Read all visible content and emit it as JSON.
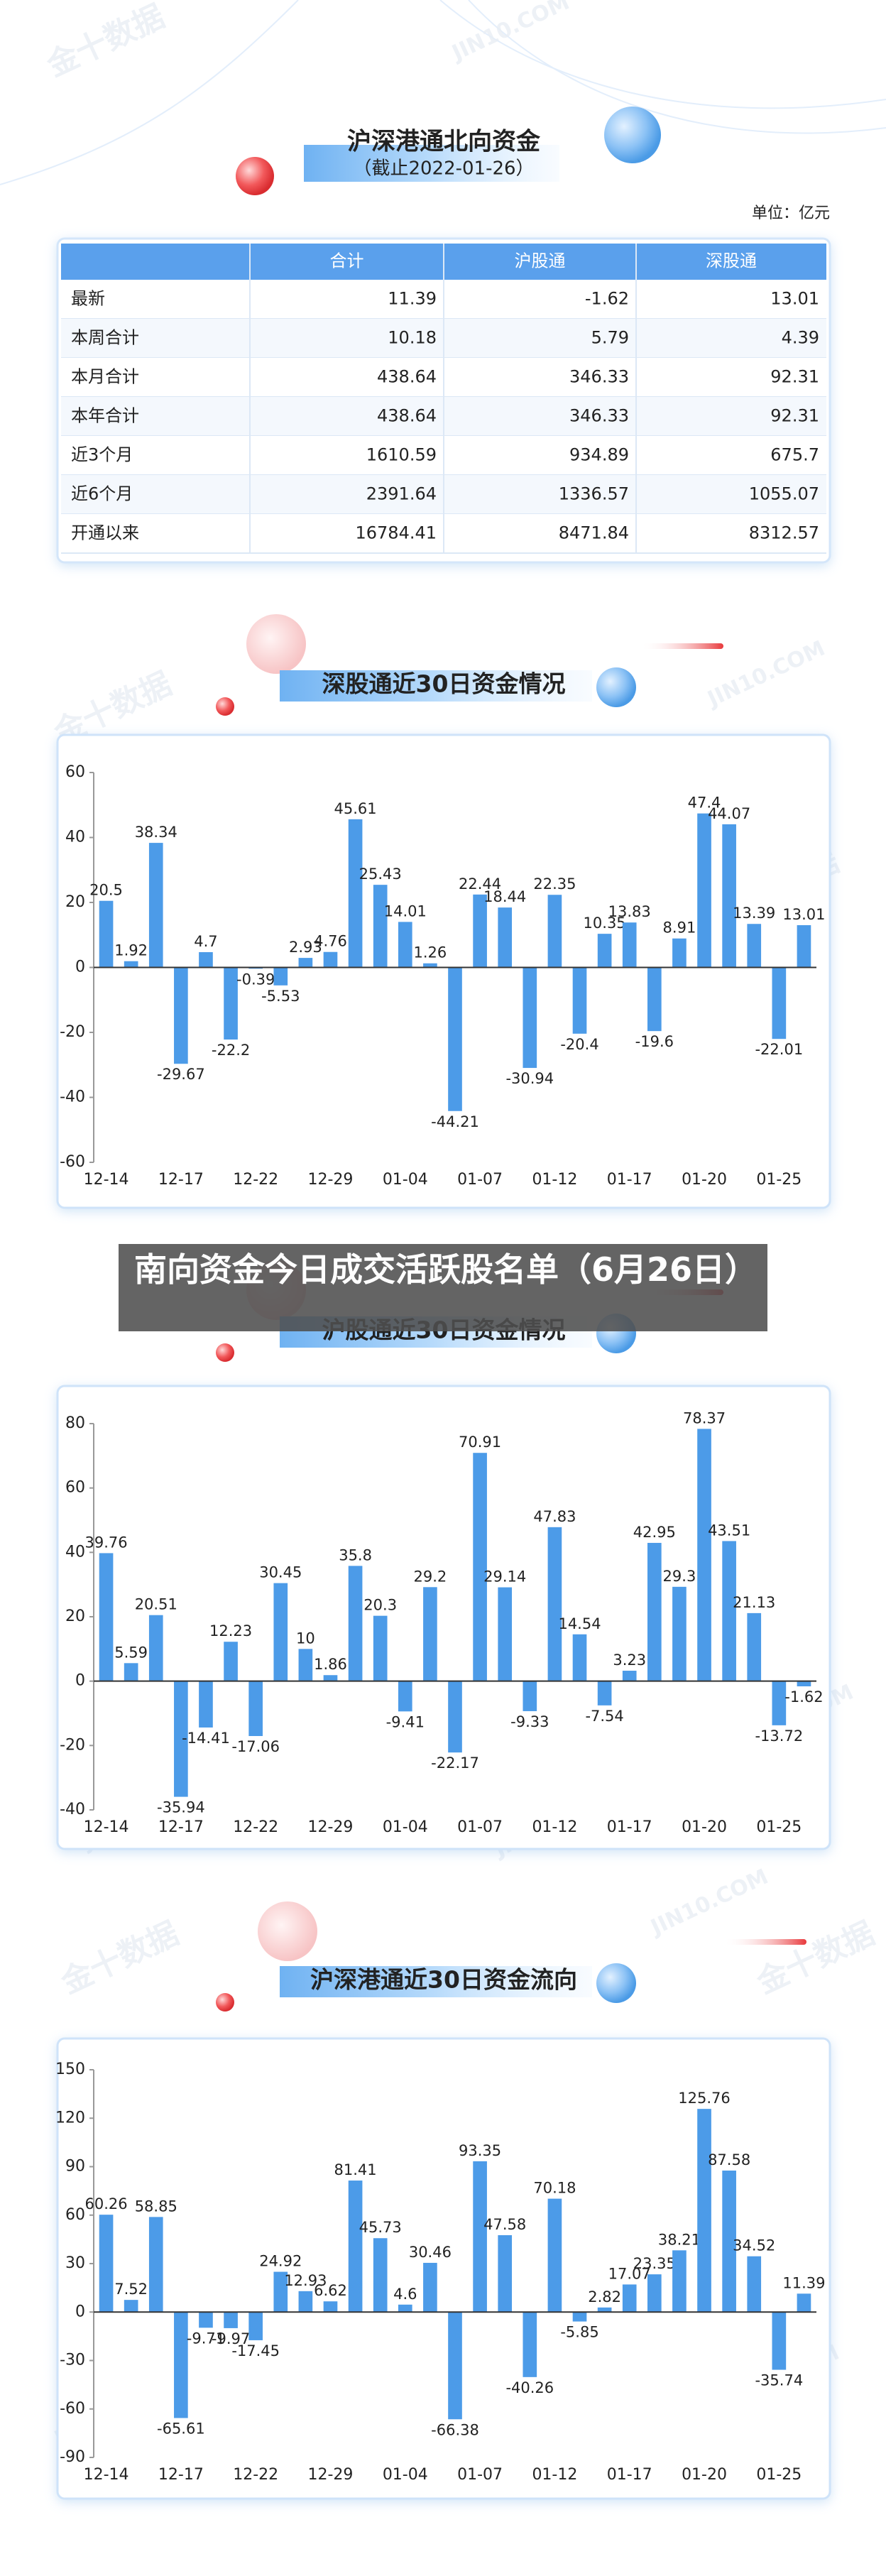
{
  "header": {
    "title": "沪深港通北向资金",
    "subtitle": "（截止2022-01-26）",
    "unit": "单位：亿元"
  },
  "table": {
    "columns": [
      "合计",
      "沪股通",
      "深股通"
    ],
    "rows": [
      [
        "最新",
        11.39,
        -1.62,
        13.01
      ],
      [
        "本周合计",
        10.18,
        5.79,
        4.39
      ],
      [
        "本月合计",
        438.64,
        346.33,
        92.31
      ],
      [
        "本年合计",
        438.64,
        346.33,
        92.31
      ],
      [
        "近3个月",
        1610.59,
        934.89,
        675.7
      ],
      [
        "近6个月",
        2391.64,
        1336.57,
        1055.07
      ],
      [
        "开通以来",
        16784.41,
        8471.84,
        8312.57
      ]
    ]
  },
  "banner": "南向资金今日成交活跃股名单（6月26日）",
  "watermark": [
    "金十数据",
    "JIN10.COM"
  ],
  "chart_data": [
    {
      "type": "bar",
      "title": "深股通近30日资金情况",
      "categories": [
        "12-14",
        null,
        null,
        "12-17",
        null,
        null,
        "12-22",
        null,
        null,
        "12-29",
        null,
        null,
        "01-04",
        null,
        null,
        "01-07",
        null,
        null,
        "01-12",
        null,
        null,
        "01-17",
        null,
        null,
        "01-20",
        null,
        null,
        "01-25",
        null
      ],
      "values": [
        20.5,
        1.92,
        38.34,
        -29.67,
        4.7,
        -22.2,
        -0.39,
        -5.53,
        2.93,
        4.76,
        45.61,
        25.43,
        14.01,
        1.26,
        -44.21,
        22.44,
        18.44,
        -30.94,
        22.35,
        -20.4,
        10.35,
        13.83,
        -19.6,
        8.91,
        47.4,
        44.07,
        13.39,
        -22.01,
        13.01
      ],
      "color": "#4c9be8",
      "ylim": [
        -60,
        60
      ],
      "yticks": [
        -60,
        -40,
        -20,
        0,
        20,
        40,
        60
      ]
    },
    {
      "type": "bar",
      "title": "沪股通近30日资金情况",
      "categories": [
        "12-14",
        null,
        null,
        "12-17",
        null,
        null,
        "12-22",
        null,
        null,
        "12-29",
        null,
        null,
        "01-04",
        null,
        null,
        "01-07",
        null,
        null,
        "01-12",
        null,
        null,
        "01-17",
        null,
        null,
        "01-20",
        null,
        null,
        "01-25",
        null
      ],
      "values": [
        39.76,
        5.59,
        20.51,
        -35.94,
        -14.41,
        12.23,
        -17.06,
        30.45,
        10,
        1.86,
        35.8,
        20.3,
        -9.41,
        29.2,
        -22.17,
        70.91,
        29.14,
        -9.33,
        47.83,
        14.54,
        -7.54,
        3.23,
        42.95,
        29.3,
        78.37,
        43.51,
        21.13,
        -13.72,
        -1.62
      ],
      "color": "#4c9be8",
      "ylim": [
        -40,
        80
      ],
      "yticks": [
        -40,
        -20,
        0,
        20,
        40,
        60,
        80
      ]
    },
    {
      "type": "bar",
      "title": "沪深港通近30日资金流向",
      "categories": [
        "12-14",
        null,
        null,
        "12-17",
        null,
        null,
        "12-22",
        null,
        null,
        "12-29",
        null,
        null,
        "01-04",
        null,
        null,
        "01-07",
        null,
        null,
        "01-12",
        null,
        null,
        "01-17",
        null,
        null,
        "01-20",
        null,
        null,
        "01-25",
        null
      ],
      "values": [
        60.26,
        7.52,
        58.85,
        -65.61,
        -9.71,
        -9.97,
        -17.45,
        24.92,
        12.93,
        6.62,
        81.41,
        45.73,
        4.6,
        30.46,
        -66.38,
        93.35,
        47.58,
        -40.26,
        70.18,
        -5.85,
        2.82,
        17.07,
        23.35,
        38.21,
        125.76,
        87.58,
        34.52,
        -35.74,
        11.39
      ],
      "color": "#4c9be8",
      "ylim": [
        -90,
        150
      ],
      "yticks": [
        -90,
        -60,
        -30,
        0,
        30,
        60,
        90,
        120,
        150
      ]
    }
  ]
}
